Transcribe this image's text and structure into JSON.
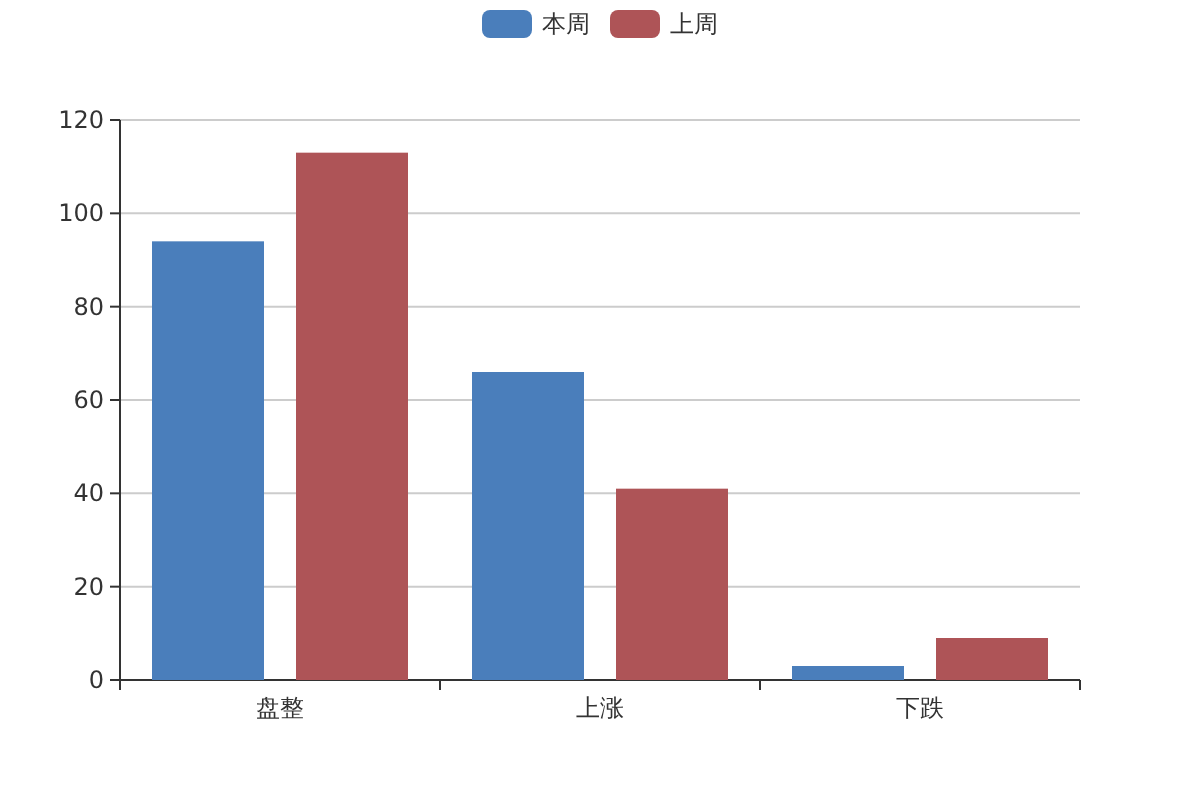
{
  "chart_data": {
    "type": "bar",
    "categories": [
      "盘整",
      "上涨",
      "下跌"
    ],
    "series": [
      {
        "name": "本周",
        "color": "#4a7ebb",
        "values": [
          94,
          66,
          3
        ]
      },
      {
        "name": "上周",
        "color": "#ae5457",
        "values": [
          113,
          41,
          9
        ]
      }
    ],
    "ylim": [
      0,
      120
    ],
    "yticks": [
      0,
      20,
      40,
      60,
      80,
      100,
      120
    ],
    "grid": "y",
    "legend": "top"
  }
}
